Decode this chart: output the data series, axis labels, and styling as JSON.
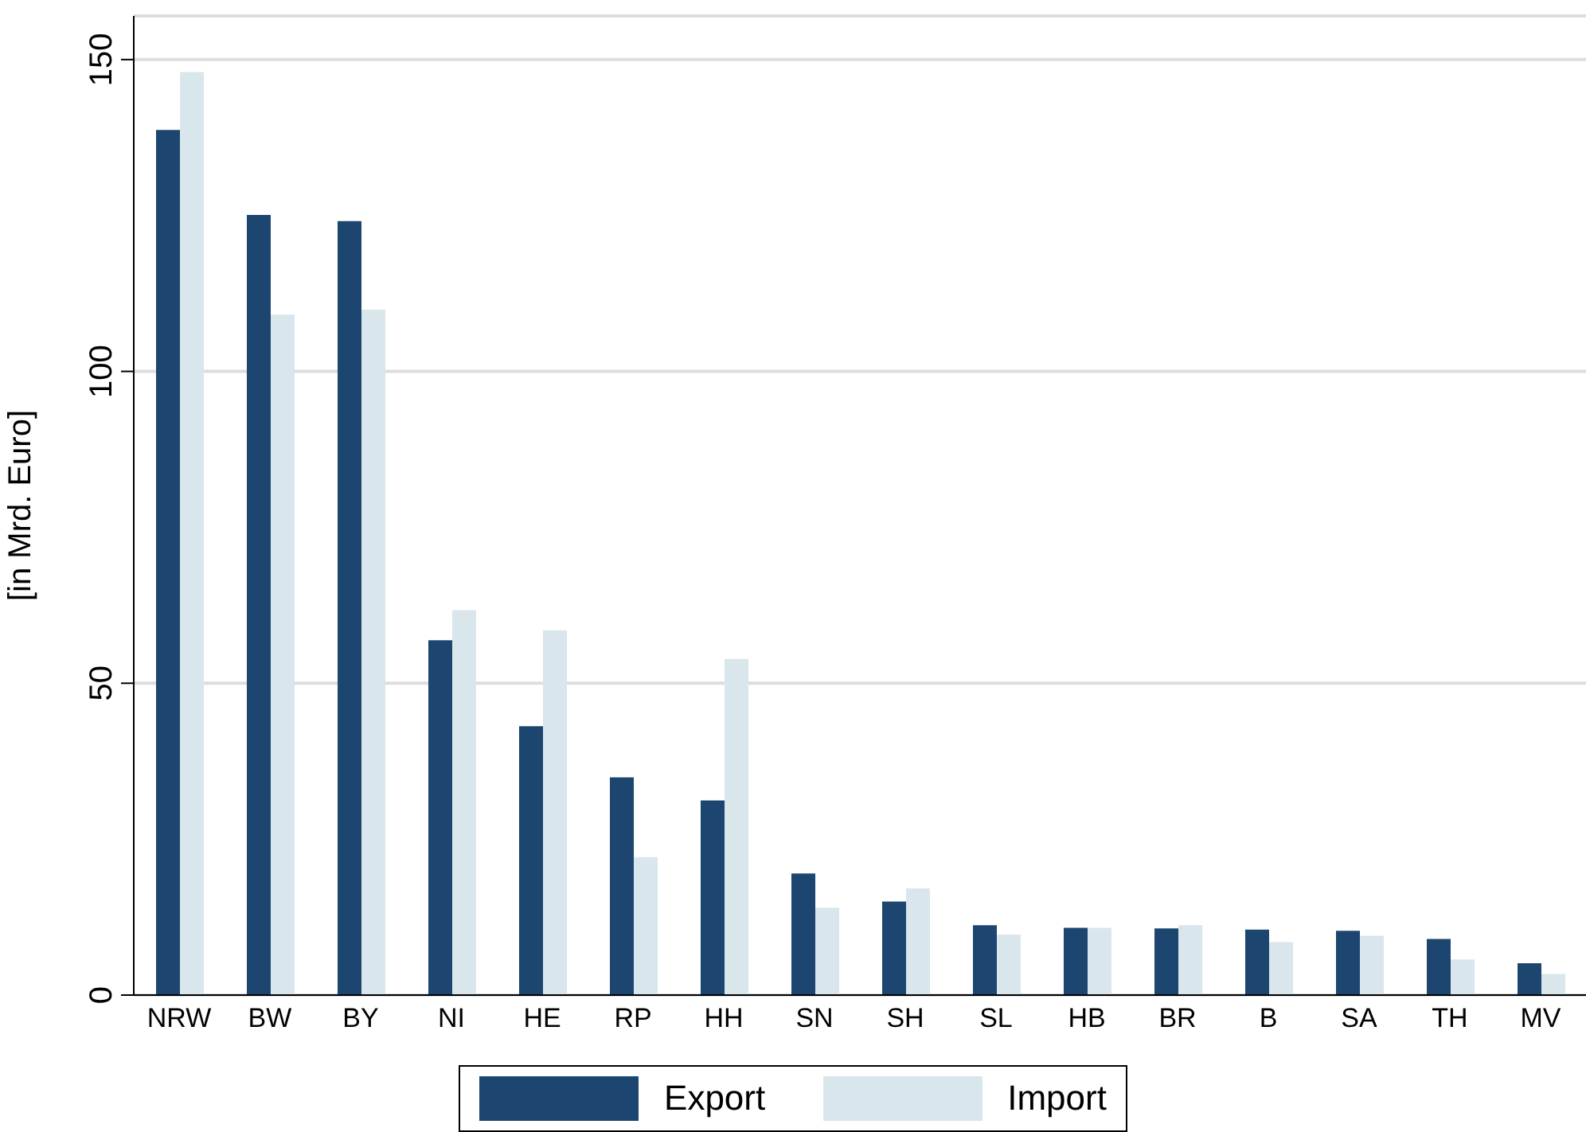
{
  "chart_data": {
    "type": "bar",
    "ylabel": "[in Mrd. Euro]",
    "categories": [
      "NRW",
      "BW",
      "BY",
      "NI",
      "HE",
      "RP",
      "HH",
      "SN",
      "SH",
      "SL",
      "HB",
      "BR",
      "B",
      "SA",
      "TH",
      "MV"
    ],
    "series": [
      {
        "name": "Export",
        "color": "#1c4670",
        "values": [
          138.7,
          125.1,
          124.1,
          56.9,
          43.1,
          34.9,
          31.2,
          19.5,
          15.0,
          11.2,
          10.8,
          10.7,
          10.5,
          10.3,
          9.0,
          5.1
        ]
      },
      {
        "name": "Import",
        "color": "#d9e6ec",
        "values": [
          148.0,
          109.1,
          109.9,
          61.7,
          58.5,
          22.1,
          53.9,
          14.0,
          17.1,
          9.7,
          10.8,
          11.2,
          8.5,
          9.5,
          5.7,
          3.4
        ]
      }
    ],
    "ylim": [
      0,
      157
    ],
    "yticks": [
      0,
      50,
      100,
      150
    ],
    "grid": "y",
    "legend": "bottom"
  }
}
